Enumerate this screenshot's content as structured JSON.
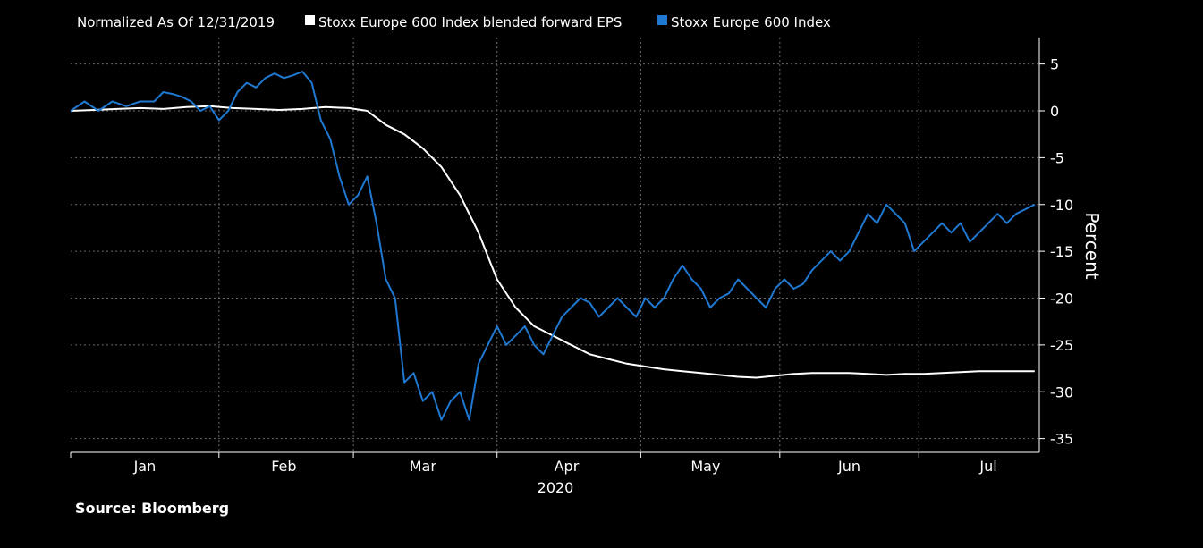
{
  "chart_data": {
    "type": "line",
    "title": "",
    "legend": {
      "placement": "top-left",
      "items": [
        {
          "label": "Normalized As Of 12/31/2019",
          "swatch": false
        },
        {
          "label": "Stoxx Europe 600 Index blended forward EPS",
          "swatch": true,
          "color": "#ffffff"
        },
        {
          "label": "Stoxx Europe 600 Index",
          "swatch": true,
          "color": "#1f78d1"
        }
      ]
    },
    "xlabel": "2020",
    "ylabel": "Percent",
    "ylim": [
      -36,
      8
    ],
    "yticks": [
      5,
      0,
      -5,
      -10,
      -15,
      -20,
      -25,
      -30,
      -35
    ],
    "xlim": [
      0,
      209
    ],
    "month_labels": [
      {
        "label": "Jan",
        "pos": 16
      },
      {
        "label": "Feb",
        "pos": 46
      },
      {
        "label": "Mar",
        "pos": 76
      },
      {
        "label": "Apr",
        "pos": 107
      },
      {
        "label": "May",
        "pos": 137
      },
      {
        "label": "Jun",
        "pos": 168
      },
      {
        "label": "Jul",
        "pos": 198
      }
    ],
    "month_boundaries": [
      0,
      32,
      61,
      92,
      123,
      153,
      183
    ],
    "grid": true,
    "series": [
      {
        "name": "Stoxx Europe 600 Index blended forward EPS",
        "color": "#ffffff",
        "x": [
          0,
          5,
          10,
          15,
          20,
          25,
          30,
          35,
          40,
          45,
          50,
          55,
          60,
          64,
          68,
          72,
          76,
          80,
          84,
          88,
          92,
          96,
          100,
          104,
          108,
          112,
          116,
          120,
          124,
          128,
          132,
          136,
          140,
          144,
          148,
          152,
          156,
          160,
          164,
          168,
          172,
          176,
          180,
          184,
          188,
          192,
          196,
          200,
          204,
          208
        ],
        "values": [
          0,
          0.1,
          0.2,
          0.3,
          0.2,
          0.4,
          0.5,
          0.3,
          0.2,
          0.1,
          0.2,
          0.4,
          0.3,
          0,
          -1.5,
          -2.5,
          -4,
          -6,
          -9,
          -13,
          -18,
          -21,
          -23,
          -24,
          -25,
          -26,
          -26.5,
          -27,
          -27.3,
          -27.6,
          -27.8,
          -28,
          -28.2,
          -28.4,
          -28.5,
          -28.3,
          -28.1,
          -28,
          -28,
          -28,
          -28.1,
          -28.2,
          -28.1,
          -28.1,
          -28,
          -27.9,
          -27.8,
          -27.8,
          -27.8,
          -27.8
        ]
      },
      {
        "name": "Stoxx Europe 600 Index",
        "color": "#1f78d1",
        "x": [
          0,
          3,
          6,
          9,
          12,
          15,
          18,
          20,
          22,
          24,
          26,
          28,
          30,
          32,
          34,
          36,
          38,
          40,
          42,
          44,
          46,
          48,
          50,
          52,
          54,
          56,
          58,
          60,
          62,
          64,
          66,
          68,
          70,
          72,
          74,
          76,
          78,
          80,
          82,
          84,
          86,
          88,
          90,
          92,
          94,
          96,
          98,
          100,
          102,
          104,
          106,
          108,
          110,
          112,
          114,
          116,
          118,
          120,
          122,
          124,
          126,
          128,
          130,
          132,
          134,
          136,
          138,
          140,
          142,
          144,
          146,
          148,
          150,
          152,
          154,
          156,
          158,
          160,
          162,
          164,
          166,
          168,
          170,
          172,
          174,
          176,
          178,
          180,
          182,
          184,
          186,
          188,
          190,
          192,
          194,
          196,
          198,
          200,
          202,
          204,
          206,
          208
        ],
        "values": [
          0,
          1,
          0,
          1,
          0.5,
          1,
          1,
          2,
          1.8,
          1.5,
          1,
          0,
          0.5,
          -1,
          0,
          2,
          3,
          2.5,
          3.5,
          4,
          3.5,
          3.8,
          4.2,
          3,
          -1,
          -3,
          -7,
          -10,
          -9,
          -7,
          -12,
          -18,
          -20,
          -29,
          -28,
          -31,
          -30,
          -33,
          -31,
          -30,
          -33,
          -27,
          -25,
          -23,
          -25,
          -24,
          -23,
          -25,
          -26,
          -24,
          -22,
          -21,
          -20,
          -20.5,
          -22,
          -21,
          -20,
          -21,
          -22,
          -20,
          -21,
          -20,
          -18,
          -16.5,
          -18,
          -19,
          -21,
          -20,
          -19.5,
          -18,
          -19,
          -20,
          -21,
          -19,
          -18,
          -19,
          -18.5,
          -17,
          -16,
          -15,
          -16,
          -15,
          -13,
          -11,
          -12,
          -10,
          -11,
          -12,
          -15,
          -14,
          -13,
          -12,
          -13,
          -12,
          -14,
          -13,
          -12,
          -11,
          -12,
          -11,
          -10.5,
          -10
        ]
      }
    ]
  },
  "footer": {
    "source": "Source: Bloomberg"
  }
}
